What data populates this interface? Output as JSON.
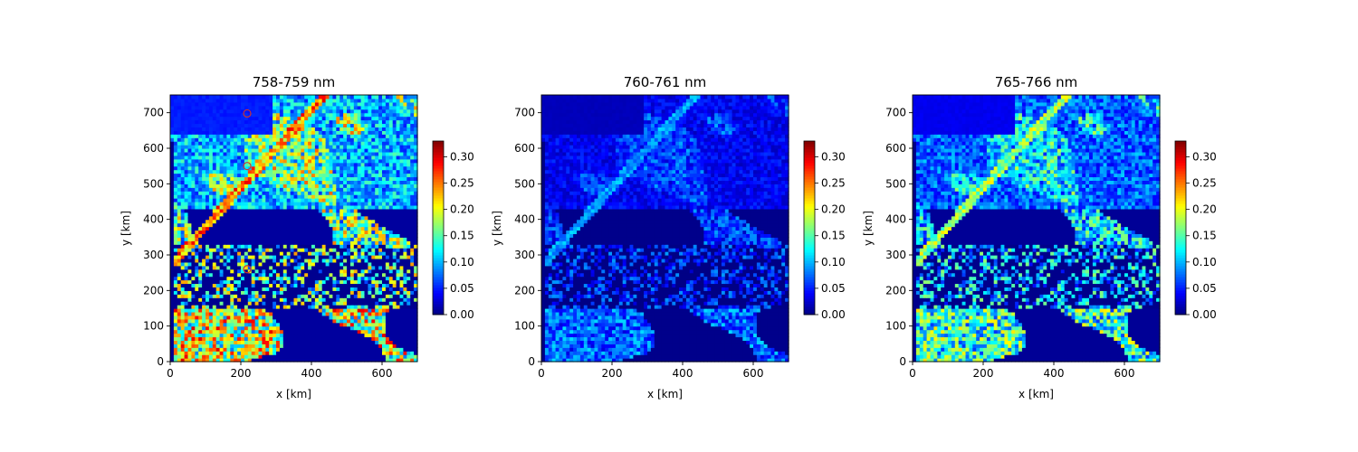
{
  "figure": {
    "background": "#ffffff"
  },
  "chart_data": [
    {
      "type": "heatmap",
      "title": "758-759 nm",
      "xlabel": "x [km]",
      "ylabel": "y [km]",
      "xlim": [
        0,
        700
      ],
      "ylim": [
        0,
        750
      ],
      "xticks": [
        "0",
        "200",
        "400",
        "600"
      ],
      "yticks": [
        "0",
        "100",
        "200",
        "300",
        "400",
        "500",
        "600",
        "700"
      ],
      "colorbar": {
        "min": 0.0,
        "max": 0.33,
        "ticks": [
          "0.00",
          "0.05",
          "0.10",
          "0.15",
          "0.20",
          "0.25",
          "0.30"
        ],
        "colormap": "jet"
      },
      "field_scale": 1.0,
      "markers": [
        {
          "x": 218,
          "y": 698
        },
        {
          "x": 218,
          "y": 550
        },
        {
          "x": 218,
          "y": 260
        }
      ]
    },
    {
      "type": "heatmap",
      "title": "760-761 nm",
      "xlabel": "x [km]",
      "ylabel": "y [km]",
      "xlim": [
        0,
        700
      ],
      "ylim": [
        0,
        750
      ],
      "xticks": [
        "0",
        "200",
        "400",
        "600"
      ],
      "yticks": [
        "0",
        "100",
        "200",
        "300",
        "400",
        "500",
        "600",
        "700"
      ],
      "colorbar": {
        "min": 0.0,
        "max": 0.33,
        "ticks": [
          "0.00",
          "0.05",
          "0.10",
          "0.15",
          "0.20",
          "0.25",
          "0.30"
        ],
        "colormap": "jet"
      },
      "field_scale": 0.38,
      "markers": []
    },
    {
      "type": "heatmap",
      "title": "765-766 nm",
      "xlabel": "x [km]",
      "ylabel": "y [km]",
      "xlim": [
        0,
        700
      ],
      "ylim": [
        0,
        750
      ],
      "xticks": [
        "0",
        "200",
        "400",
        "600"
      ],
      "yticks": [
        "0",
        "100",
        "200",
        "300",
        "400",
        "500",
        "600",
        "700"
      ],
      "colorbar": {
        "min": 0.0,
        "max": 0.33,
        "ticks": [
          "0.00",
          "0.05",
          "0.10",
          "0.15",
          "0.20",
          "0.25",
          "0.30"
        ],
        "colormap": "jet"
      },
      "field_scale": 0.72,
      "markers": []
    }
  ]
}
